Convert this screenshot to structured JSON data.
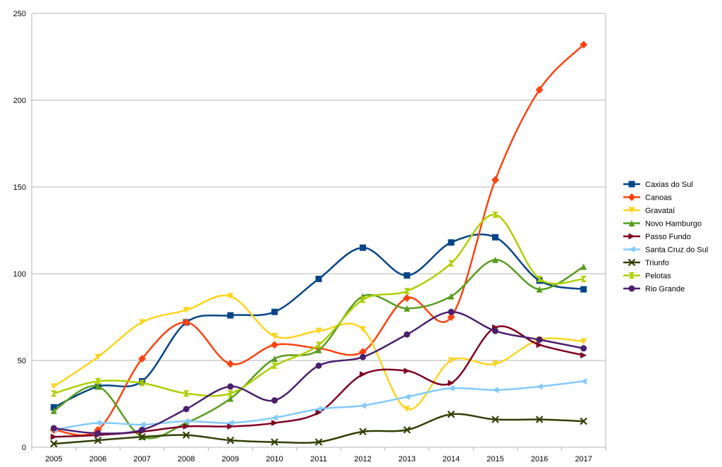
{
  "chart_data": {
    "type": "line",
    "title": "",
    "xlabel": "",
    "ylabel": "",
    "ylim": [
      0,
      250
    ],
    "yticks": [
      "0",
      "50",
      "100",
      "150",
      "200",
      "250"
    ],
    "categories": [
      "2005",
      "2006",
      "2007",
      "2008",
      "2009",
      "2010",
      "2011",
      "2012",
      "2013",
      "2014",
      "2015",
      "2016",
      "2017"
    ],
    "grid": "horizontal",
    "legend_position": "right",
    "series": [
      {
        "name": "Caxias do Sul",
        "color": "#004586",
        "marker": "square",
        "values": [
          23,
          35,
          38,
          72,
          76,
          78,
          97,
          115,
          99,
          118,
          121,
          96,
          91
        ]
      },
      {
        "name": "Canoas",
        "color": "#ff420e",
        "marker": "diamond",
        "values": [
          10,
          10,
          51,
          72,
          48,
          59,
          57,
          55,
          86,
          75,
          154,
          206,
          232
        ]
      },
      {
        "name": "Gravataí",
        "color": "#ffd320",
        "marker": "triangle-down",
        "values": [
          35,
          52,
          72,
          79,
          87,
          64,
          67,
          68,
          22,
          50,
          48,
          62,
          61
        ]
      },
      {
        "name": "Novo Hamburgo",
        "color": "#579d1c",
        "marker": "triangle-up",
        "values": [
          21,
          35,
          6,
          14,
          28,
          51,
          56,
          87,
          80,
          87,
          108,
          91,
          104
        ]
      },
      {
        "name": "Passo Fundo",
        "color": "#7e0021",
        "marker": "triangle-right",
        "values": [
          6,
          7,
          9,
          12,
          12,
          14,
          20,
          42,
          44,
          37,
          69,
          59,
          53
        ]
      },
      {
        "name": "Santa Cruz do Sul",
        "color": "#83caff",
        "marker": "triangle-left",
        "values": [
          10,
          14,
          13,
          15,
          14,
          17,
          22,
          24,
          29,
          34,
          33,
          35,
          38
        ]
      },
      {
        "name": "Triunfo",
        "color": "#314004",
        "marker": "x",
        "values": [
          2,
          4,
          6,
          7,
          4,
          3,
          3,
          9,
          10,
          19,
          16,
          16,
          15
        ]
      },
      {
        "name": "Pelotas",
        "color": "#aecf00",
        "marker": "hourglass",
        "values": [
          31,
          38,
          37,
          31,
          31,
          47,
          59,
          85,
          90,
          106,
          134,
          97,
          97
        ]
      },
      {
        "name": "Rio Grande",
        "color": "#4b1f6f",
        "marker": "circle",
        "values": [
          11,
          8,
          10,
          22,
          35,
          27,
          47,
          52,
          65,
          78,
          67,
          62,
          57
        ]
      }
    ]
  }
}
